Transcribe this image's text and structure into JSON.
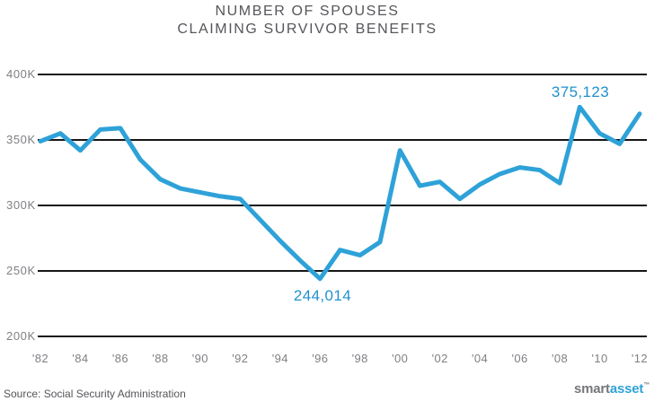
{
  "header": {
    "title_line1": "NUMBER OF SPOUSES",
    "title_line2": "CLAIMING SURVIVOR BENEFITS"
  },
  "chart_data": {
    "type": "line",
    "title": "Number of Spouses Claiming Survivor Benefits",
    "x": [
      1982,
      1983,
      1984,
      1985,
      1986,
      1987,
      1988,
      1989,
      1990,
      1991,
      1992,
      1993,
      1994,
      1995,
      1996,
      1997,
      1998,
      1999,
      2000,
      2001,
      2002,
      2003,
      2004,
      2005,
      2006,
      2007,
      2008,
      2009,
      2010,
      2011,
      2012
    ],
    "series": [
      {
        "name": "Spouses claiming survivor benefits",
        "values": [
          349000,
          355000,
          342000,
          358000,
          359000,
          335000,
          320000,
          313000,
          310000,
          307000,
          305000,
          289000,
          273000,
          258000,
          244014,
          266000,
          262000,
          272000,
          342000,
          315000,
          318000,
          305000,
          316000,
          324000,
          329000,
          327000,
          317000,
          375123,
          355000,
          347000,
          370000
        ]
      }
    ],
    "ylim": [
      200000,
      400000
    ],
    "y_ticks": [
      400000,
      350000,
      300000,
      250000,
      200000
    ],
    "y_ticklabels": [
      "400K",
      "350K",
      "300K",
      "250K",
      "200K"
    ],
    "x_tick_years": [
      1982,
      1984,
      1986,
      1988,
      1990,
      1992,
      1994,
      1996,
      1998,
      2000,
      2002,
      2004,
      2006,
      2008,
      2010,
      2012
    ],
    "x_ticklabels": [
      "'82",
      "'84",
      "'86",
      "'88",
      "'90",
      "'92",
      "'94",
      "'96",
      "'98",
      "'00",
      "'02",
      "'04",
      "'06",
      "'08",
      "'10",
      "'12"
    ],
    "grid": "horizontal",
    "legend": "none",
    "annotations": [
      {
        "label": "375,123",
        "year": 2009,
        "value": 375123,
        "position": "above-peak"
      },
      {
        "label": "244,014",
        "year": 1996,
        "value": 244014,
        "position": "below-trough"
      }
    ],
    "colors": {
      "line": "#2ea2d8",
      "annotation_text": "#2191cd",
      "gridline": "#161616",
      "tick_label": "#7f8084",
      "title_text": "#55565a",
      "background": "#ffffff"
    }
  },
  "footer": {
    "source": "Source: Social Security Administration",
    "logo_smart": "smart",
    "logo_asset": "asset",
    "logo_tm": "™"
  }
}
